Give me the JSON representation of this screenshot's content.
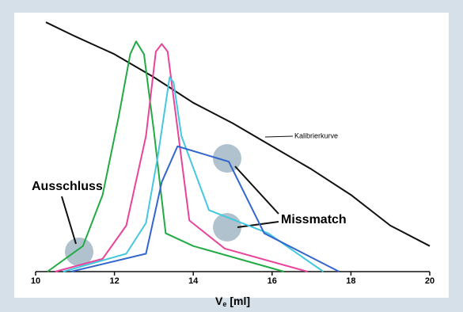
{
  "chart_data": {
    "type": "line",
    "x_label": {
      "symbol": "V",
      "subscript": "e",
      "unit": "[ml]"
    },
    "xlim": [
      10,
      20
    ],
    "xticks": [
      10,
      12,
      14,
      16,
      18,
      20
    ],
    "ylim": [
      0,
      100
    ],
    "series": [
      {
        "name": "Kalibrierkurve",
        "color": "#111111",
        "x": [
          10.26,
          11,
          12,
          13,
          14,
          15,
          16,
          17,
          18,
          19,
          20
        ],
        "values": [
          97.5,
          92,
          85,
          76,
          66,
          58,
          49,
          40,
          30,
          18,
          10
        ]
      },
      {
        "color": "#22aa44",
        "x": [
          10.3,
          11.2,
          11.7,
          12.1,
          12.4,
          12.55,
          12.75,
          13.0,
          13.3,
          14,
          16.3
        ],
        "values": [
          0,
          10,
          30,
          60,
          85,
          90,
          85,
          55,
          15,
          10,
          0
        ]
      },
      {
        "color": "#e8449a",
        "x": [
          10.5,
          11.7,
          12.3,
          12.8,
          13.05,
          13.2,
          13.35,
          13.65,
          13.9,
          14.8,
          16.9
        ],
        "values": [
          0,
          5,
          18,
          53,
          86,
          89,
          86,
          50,
          20,
          9,
          0
        ]
      },
      {
        "color": "#44c8e0",
        "x": [
          10.7,
          12.3,
          12.8,
          13.1,
          13.4,
          13.5,
          13.7,
          14.4,
          15.9,
          17.3
        ],
        "values": [
          0,
          7,
          19,
          45,
          76,
          74,
          53,
          24,
          15,
          0
        ]
      },
      {
        "color": "#3366cc",
        "x": [
          10.9,
          12.8,
          13.2,
          13.6,
          14.9,
          15.8,
          17.7
        ],
        "values": [
          0,
          7,
          35,
          49,
          43,
          15,
          0
        ]
      }
    ],
    "annotations": [
      "Ausschluss",
      "Missmatch"
    ]
  }
}
